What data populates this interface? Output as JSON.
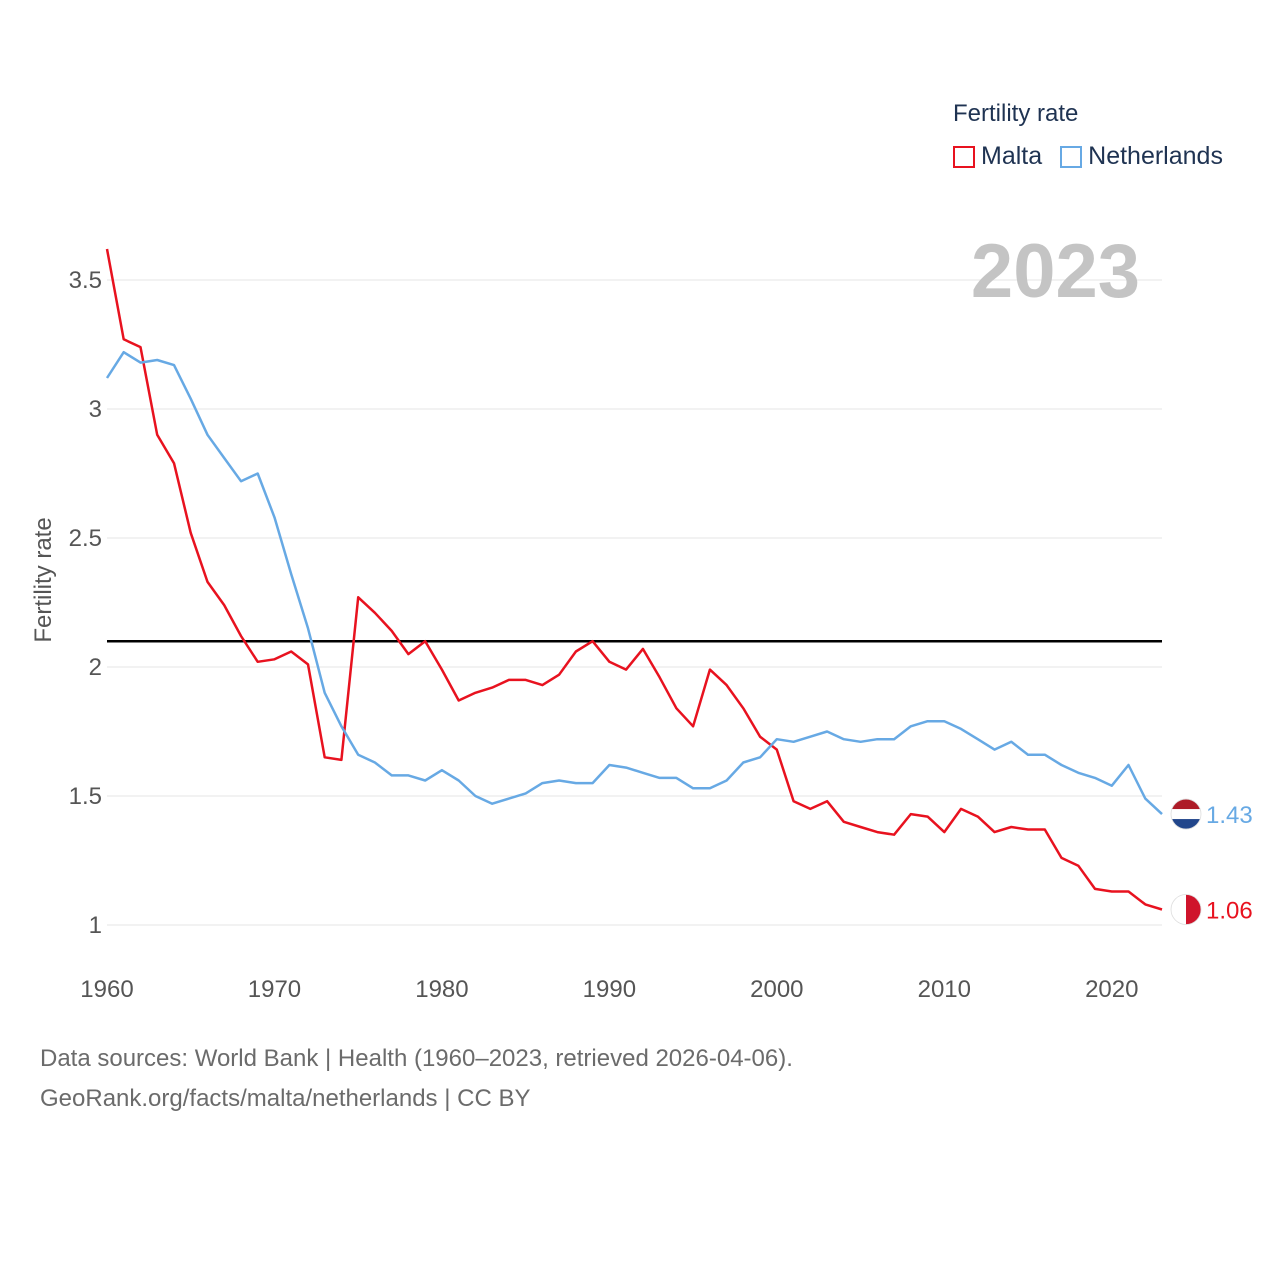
{
  "legend": {
    "title": "Fertility rate",
    "items": [
      {
        "label": "Malta",
        "color": "#e8121f"
      },
      {
        "label": "Netherlands",
        "color": "#67a9e4"
      }
    ]
  },
  "year_label": "2023",
  "source": {
    "line1": "Data sources: World Bank | Health (1960–2023, retrieved 2026-04-06).",
    "line2": "GeoRank.org/facts/malta/netherlands | CC BY"
  },
  "chart_data": {
    "type": "line",
    "title": "Fertility rate",
    "xlabel": "",
    "ylabel": "Fertility rate",
    "xlim": [
      1960,
      2023
    ],
    "ylim": [
      1,
      3.6
    ],
    "x_ticks": [
      1960,
      1970,
      1980,
      1990,
      2000,
      2010,
      2020
    ],
    "y_ticks": [
      1,
      1.5,
      2,
      2.5,
      3,
      3.5
    ],
    "y_tick_labels": [
      "1",
      "1.5",
      "2",
      "2.5",
      "3",
      "3.5"
    ],
    "reference_line": {
      "y": 2.1,
      "color": "#000000"
    },
    "x": [
      1960,
      1961,
      1962,
      1963,
      1964,
      1965,
      1966,
      1967,
      1968,
      1969,
      1970,
      1971,
      1972,
      1973,
      1974,
      1975,
      1976,
      1977,
      1978,
      1979,
      1980,
      1981,
      1982,
      1983,
      1984,
      1985,
      1986,
      1987,
      1988,
      1989,
      1990,
      1991,
      1992,
      1993,
      1994,
      1995,
      1996,
      1997,
      1998,
      1999,
      2000,
      2001,
      2002,
      2003,
      2004,
      2005,
      2006,
      2007,
      2008,
      2009,
      2010,
      2011,
      2012,
      2013,
      2014,
      2015,
      2016,
      2017,
      2018,
      2019,
      2020,
      2021,
      2022,
      2023
    ],
    "series": [
      {
        "name": "Malta",
        "color": "#e8121f",
        "end_label": "1.06",
        "values": [
          3.62,
          3.27,
          3.24,
          2.9,
          2.79,
          2.52,
          2.33,
          2.24,
          2.12,
          2.02,
          2.03,
          2.06,
          2.01,
          1.65,
          1.64,
          2.27,
          2.21,
          2.14,
          2.05,
          2.1,
          1.99,
          1.87,
          1.9,
          1.92,
          1.95,
          1.95,
          1.93,
          1.97,
          2.06,
          2.1,
          2.02,
          1.99,
          2.07,
          1.96,
          1.84,
          1.77,
          1.99,
          1.93,
          1.84,
          1.73,
          1.68,
          1.48,
          1.45,
          1.48,
          1.4,
          1.38,
          1.36,
          1.35,
          1.43,
          1.42,
          1.36,
          1.45,
          1.42,
          1.36,
          1.38,
          1.37,
          1.37,
          1.26,
          1.23,
          1.14,
          1.13,
          1.13,
          1.08,
          1.06
        ]
      },
      {
        "name": "Netherlands",
        "color": "#67a9e4",
        "end_label": "1.43",
        "values": [
          3.12,
          3.22,
          3.18,
          3.19,
          3.17,
          3.04,
          2.9,
          2.81,
          2.72,
          2.75,
          2.58,
          2.36,
          2.15,
          1.9,
          1.77,
          1.66,
          1.63,
          1.58,
          1.58,
          1.56,
          1.6,
          1.56,
          1.5,
          1.47,
          1.49,
          1.51,
          1.55,
          1.56,
          1.55,
          1.55,
          1.62,
          1.61,
          1.59,
          1.57,
          1.57,
          1.53,
          1.53,
          1.56,
          1.63,
          1.65,
          1.72,
          1.71,
          1.73,
          1.75,
          1.72,
          1.71,
          1.72,
          1.72,
          1.77,
          1.79,
          1.79,
          1.76,
          1.72,
          1.68,
          1.71,
          1.66,
          1.66,
          1.62,
          1.59,
          1.57,
          1.54,
          1.62,
          1.49,
          1.43
        ]
      }
    ]
  }
}
